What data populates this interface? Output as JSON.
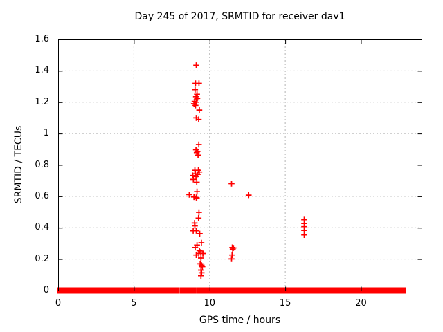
{
  "chart_data": {
    "type": "scatter",
    "title": "Day 245 of 2017, SRMTID for receiver dav1",
    "xlabel": "GPS time / hours",
    "ylabel": "SRMTID / TECUs",
    "xlim": [
      0,
      24
    ],
    "ylim": [
      0,
      1.6
    ],
    "x_ticks": [
      0,
      5,
      10,
      15,
      20
    ],
    "x_tick_labels": [
      "0",
      "5",
      "10",
      "15",
      "20"
    ],
    "y_ticks": [
      0,
      0.2,
      0.4,
      0.6,
      0.8,
      1.0,
      1.2,
      1.4,
      1.6
    ],
    "y_tick_labels": [
      "0",
      "0.2",
      "0.4",
      "0.6",
      "0.8",
      "1",
      "1.2",
      "1.4",
      "1.6"
    ],
    "grid": true,
    "legend": "none",
    "marker": "plus",
    "marker_color": "#ff0000",
    "grid_color": "#b4b4b4",
    "border_color": "#000000",
    "baseline_band": {
      "y": 0,
      "comment_visible_fact": "dense run of markers at y=0",
      "segments": [
        [
          0.0,
          7.93
        ],
        [
          8.13,
          9.05
        ],
        [
          9.24,
          9.55
        ],
        [
          9.67,
          11.41
        ],
        [
          11.5,
          22.88
        ]
      ]
    },
    "series": [
      {
        "name": "SRMTID",
        "points": [
          [
            9.12,
            1.435
          ],
          [
            9.07,
            1.32
          ],
          [
            9.3,
            1.32
          ],
          [
            9.04,
            1.28
          ],
          [
            9.17,
            1.25
          ],
          [
            9.1,
            1.235
          ],
          [
            9.19,
            1.225
          ],
          [
            9.14,
            1.215
          ],
          [
            9.01,
            1.205
          ],
          [
            9.12,
            1.2
          ],
          [
            8.97,
            1.19
          ],
          [
            9.07,
            1.18
          ],
          [
            9.32,
            1.15
          ],
          [
            9.12,
            1.1
          ],
          [
            9.28,
            1.09
          ],
          [
            9.29,
            0.93
          ],
          [
            9.1,
            0.897
          ],
          [
            9.2,
            0.886
          ],
          [
            9.15,
            0.879
          ],
          [
            9.24,
            0.862
          ],
          [
            9.03,
            0.766
          ],
          [
            9.26,
            0.766
          ],
          [
            9.32,
            0.755
          ],
          [
            9.06,
            0.744
          ],
          [
            9.21,
            0.74
          ],
          [
            8.89,
            0.733
          ],
          [
            9.1,
            0.727
          ],
          [
            8.93,
            0.708
          ],
          [
            9.15,
            0.69
          ],
          [
            9.17,
            0.63
          ],
          [
            8.66,
            0.611
          ],
          [
            8.97,
            0.596
          ],
          [
            9.12,
            0.593
          ],
          [
            9.15,
            0.59
          ],
          [
            9.3,
            0.498
          ],
          [
            9.27,
            0.461
          ],
          [
            9.01,
            0.43
          ],
          [
            9.03,
            0.412
          ],
          [
            8.92,
            0.381
          ],
          [
            9.12,
            0.381
          ],
          [
            9.35,
            0.362
          ],
          [
            9.46,
            0.304
          ],
          [
            9.17,
            0.289
          ],
          [
            9.05,
            0.274
          ],
          [
            9.33,
            0.254
          ],
          [
            9.42,
            0.245
          ],
          [
            9.29,
            0.236
          ],
          [
            9.56,
            0.236
          ],
          [
            9.12,
            0.226
          ],
          [
            9.43,
            0.207
          ],
          [
            9.38,
            0.17
          ],
          [
            9.47,
            0.161
          ],
          [
            9.52,
            0.152
          ],
          [
            9.43,
            0.13
          ],
          [
            9.47,
            0.113
          ],
          [
            9.43,
            0.094
          ],
          [
            11.45,
            0.681
          ],
          [
            12.58,
            0.608
          ],
          [
            11.5,
            0.274
          ],
          [
            11.58,
            0.271
          ],
          [
            11.53,
            0.263
          ],
          [
            11.49,
            0.226
          ],
          [
            11.45,
            0.201
          ],
          [
            16.25,
            0.451
          ],
          [
            16.25,
            0.427
          ],
          [
            16.25,
            0.407
          ],
          [
            16.25,
            0.383
          ],
          [
            16.25,
            0.354
          ]
        ]
      }
    ]
  }
}
